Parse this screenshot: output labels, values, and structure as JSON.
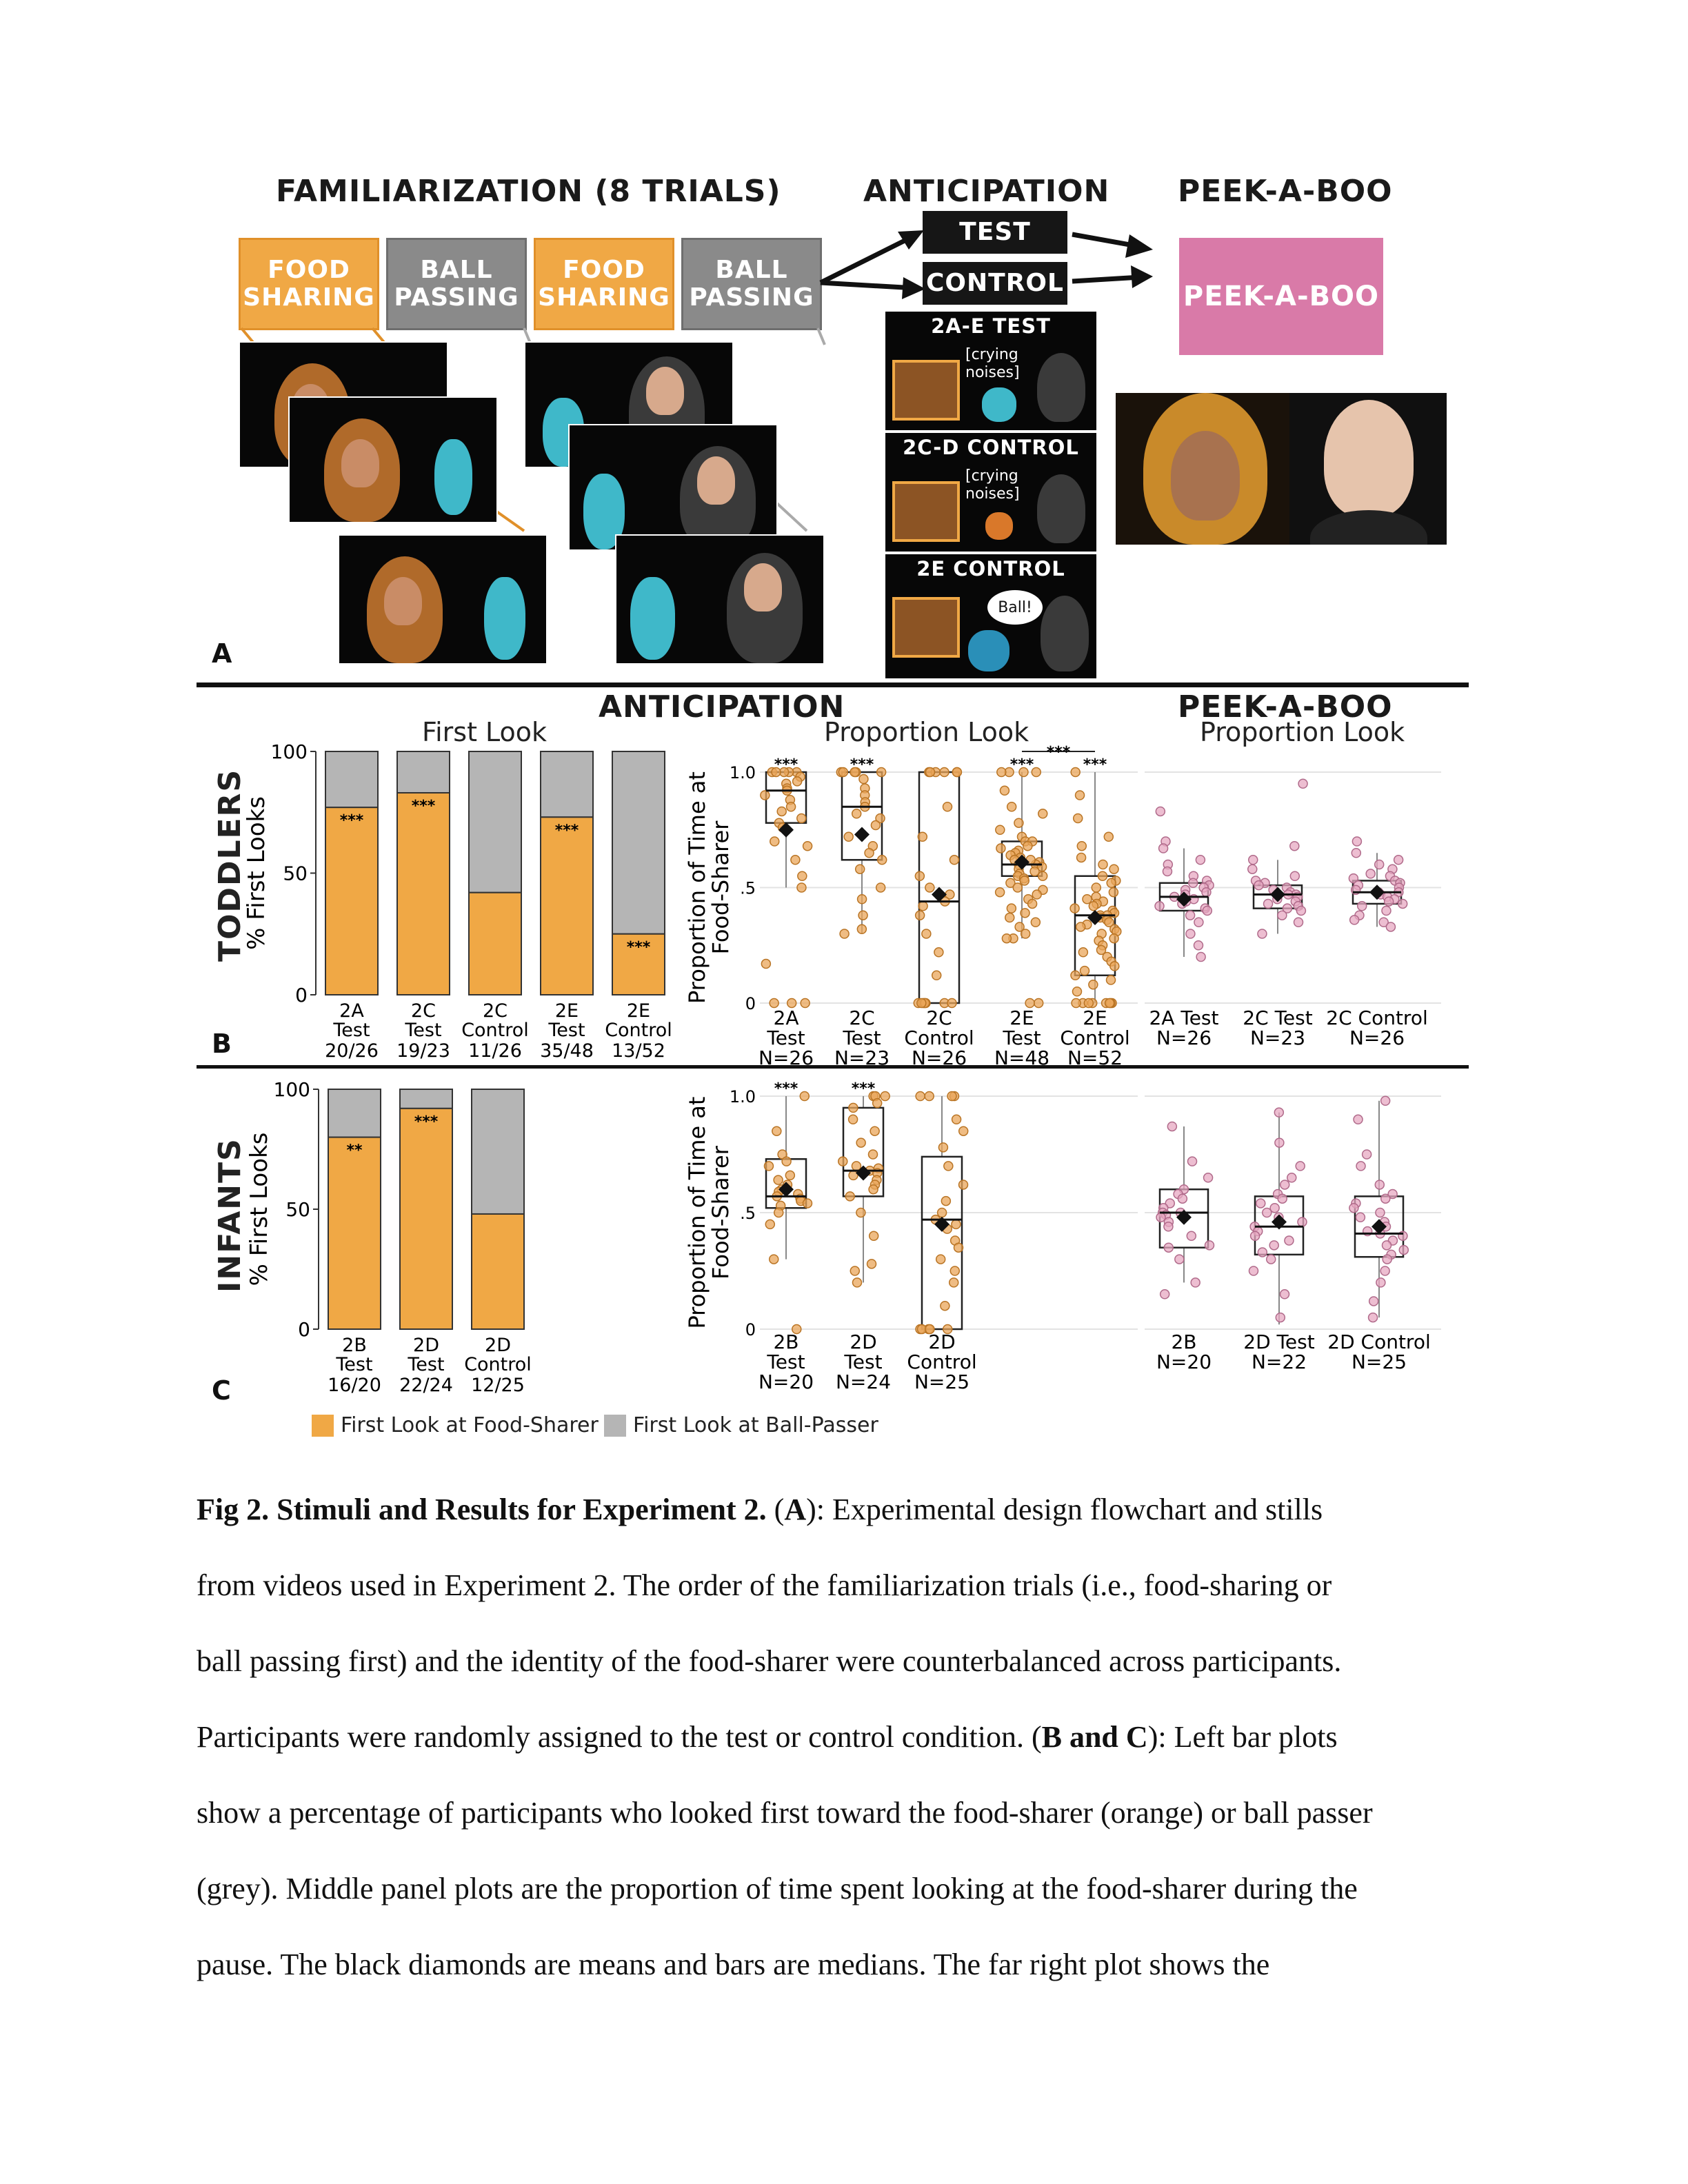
{
  "panelA": {
    "familiarization_title": "FAMILIARIZATION (8 TRIALS)",
    "anticipation_title": "ANTICIPATION",
    "peekaboo_title": "PEEK-A-BOO",
    "familiarization_boxes": [
      {
        "line1": "FOOD",
        "line2": "SHARING"
      },
      {
        "line1": "BALL",
        "line2": "PASSING"
      },
      {
        "line1": "FOOD",
        "line2": "SHARING"
      },
      {
        "line1": "BALL",
        "line2": "PASSING"
      }
    ],
    "test_label": "TEST",
    "control_label": "CONTROL",
    "peekaboo_box": "PEEK-A-BOO",
    "conditions": [
      {
        "label": "2A-E TEST",
        "bubble_line1": "[crying",
        "bubble_line2": "noises]"
      },
      {
        "label": "2C-D CONTROL",
        "bubble_line1": "[crying",
        "bubble_line2": "noises]"
      },
      {
        "label": "2E CONTROL",
        "bubble_line1": "Ball!",
        "bubble_line2": ""
      }
    ],
    "panel_letter": "A"
  },
  "panelB": {
    "row_label": "TODDLERS",
    "panel_letter": "B",
    "anticipation_title": "ANTICIPATION",
    "peekaboo_title": "PEEK-A-BOO",
    "first_look_title": "First Look",
    "proportion_look_title": "Proportion Look",
    "peekaboo_subtitle": "Proportion Look"
  },
  "panelC": {
    "row_label": "INFANTS",
    "panel_letter": "C"
  },
  "legend": {
    "food": "First Look at Food-Sharer",
    "ball": "First Look at Ball-Passer",
    "food_color": "#f0a845",
    "ball_color": "#b5b5b5"
  },
  "chart_data": [
    {
      "id": "toddlers-first-look",
      "type": "bar",
      "title": "First Look",
      "ylabel": "% First Looks",
      "ylim": [
        0,
        100
      ],
      "yticks": [
        0,
        50,
        100
      ],
      "categories": [
        {
          "l1": "2A",
          "l2": "Test",
          "l3": "20/26"
        },
        {
          "l1": "2C",
          "l2": "Test",
          "l3": "19/23"
        },
        {
          "l1": "2C",
          "l2": "Control",
          "l3": "11/26"
        },
        {
          "l1": "2E",
          "l2": "Test",
          "l3": "35/48"
        },
        {
          "l1": "2E",
          "l2": "Control",
          "l3": "13/52"
        }
      ],
      "series": [
        {
          "name": "First Look at Food-Sharer",
          "values": [
            77,
            83,
            42,
            73,
            25
          ]
        },
        {
          "name": "First Look at Ball-Passer",
          "values": [
            23,
            17,
            58,
            27,
            75
          ]
        }
      ],
      "annotations": [
        "***",
        "***",
        "",
        "***",
        "***"
      ]
    },
    {
      "id": "toddlers-proportion-look",
      "type": "scatter",
      "title": "Proportion Look",
      "ylabel_line1": "Proportion of Time at",
      "ylabel_line2": "Food-Sharer",
      "ylim": [
        0,
        1
      ],
      "yticks": [
        "0",
        ".5",
        "1.0"
      ],
      "bracket": "***",
      "groups": [
        {
          "l1": "2A",
          "l2": "Test",
          "l3": "N=26",
          "q1": 0.78,
          "median": 0.92,
          "q3": 1.0,
          "wlo": 0.5,
          "whi": 1.0,
          "mean": 0.75,
          "sig": "***",
          "points": [
            1,
            1,
            1,
            1,
            1,
            0.98,
            0.96,
            0.95,
            0.93,
            0.92,
            0.9,
            0.88,
            0.85,
            0.83,
            0.8,
            0.78,
            0.76,
            0.7,
            0.68,
            0.62,
            0.55,
            0.5,
            0.17,
            0,
            0,
            0
          ]
        },
        {
          "l1": "2C",
          "l2": "Test",
          "l3": "N=23",
          "q1": 0.62,
          "median": 0.85,
          "q3": 1.0,
          "wlo": 0.3,
          "whi": 1.0,
          "mean": 0.73,
          "sig": "***",
          "points": [
            1,
            1,
            1,
            1,
            1,
            0.97,
            0.93,
            0.9,
            0.87,
            0.85,
            0.82,
            0.8,
            0.77,
            0.72,
            0.68,
            0.65,
            0.62,
            0.58,
            0.5,
            0.45,
            0.38,
            0.32,
            0.3
          ]
        },
        {
          "l1": "2C",
          "l2": "Control",
          "l3": "N=26",
          "q1": 0.0,
          "median": 0.44,
          "q3": 1.0,
          "wlo": 0.0,
          "whi": 1.0,
          "mean": 0.47,
          "sig": "",
          "points": [
            1,
            1,
            1,
            1,
            1,
            1,
            0.85,
            0.72,
            0.62,
            0.55,
            0.5,
            0.47,
            0.44,
            0.42,
            0.38,
            0.3,
            0.22,
            0.12,
            0,
            0,
            0,
            0,
            0,
            0,
            0,
            0
          ]
        },
        {
          "l1": "2E",
          "l2": "Test",
          "l3": "N=48",
          "q1": 0.55,
          "median": 0.6,
          "q3": 0.7,
          "wlo": 0.28,
          "whi": 1.0,
          "mean": 0.61,
          "sig": "***",
          "points": [
            1,
            1,
            1,
            1,
            0.92,
            0.85,
            0.82,
            0.78,
            0.75,
            0.72,
            0.7,
            0.7,
            0.68,
            0.67,
            0.66,
            0.65,
            0.64,
            0.63,
            0.62,
            0.61,
            0.6,
            0.6,
            0.59,
            0.58,
            0.57,
            0.56,
            0.55,
            0.55,
            0.54,
            0.53,
            0.52,
            0.5,
            0.49,
            0.48,
            0.47,
            0.45,
            0.43,
            0.41,
            0.39,
            0.37,
            0.35,
            0.33,
            0.3,
            0.28,
            0.28,
            0.0,
            0.0,
            0.62
          ]
        },
        {
          "l1": "2E",
          "l2": "Control",
          "l3": "N=52",
          "q1": 0.12,
          "median": 0.38,
          "q3": 0.55,
          "wlo": 0.0,
          "whi": 1.0,
          "mean": 0.37,
          "sig": "***",
          "points": [
            1,
            0.9,
            0.8,
            0.72,
            0.68,
            0.63,
            0.6,
            0.58,
            0.55,
            0.53,
            0.52,
            0.5,
            0.48,
            0.46,
            0.45,
            0.44,
            0.43,
            0.42,
            0.41,
            0.4,
            0.39,
            0.38,
            0.38,
            0.37,
            0.36,
            0.35,
            0.34,
            0.33,
            0.32,
            0.31,
            0.3,
            0.28,
            0.27,
            0.25,
            0.23,
            0.22,
            0.2,
            0.18,
            0.16,
            0.14,
            0.12,
            0.1,
            0.08,
            0.05,
            0,
            0,
            0,
            0,
            0,
            0,
            0,
            0
          ]
        }
      ]
    },
    {
      "id": "toddlers-peekaboo",
      "type": "scatter",
      "title": "Proportion Look",
      "ylim": [
        0,
        1
      ],
      "groups": [
        {
          "l1": "2A Test",
          "l2": "N=26",
          "q1": 0.4,
          "median": 0.46,
          "q3": 0.52,
          "wlo": 0.2,
          "whi": 0.67,
          "mean": 0.45,
          "points": [
            0.83,
            0.7,
            0.67,
            0.62,
            0.6,
            0.57,
            0.55,
            0.53,
            0.52,
            0.51,
            0.5,
            0.49,
            0.48,
            0.47,
            0.46,
            0.45,
            0.44,
            0.43,
            0.42,
            0.41,
            0.4,
            0.38,
            0.35,
            0.3,
            0.25,
            0.2
          ]
        },
        {
          "l1": "2C Test",
          "l2": "N=23",
          "q1": 0.41,
          "median": 0.47,
          "q3": 0.51,
          "wlo": 0.3,
          "whi": 0.62,
          "mean": 0.47,
          "points": [
            0.95,
            0.68,
            0.62,
            0.58,
            0.55,
            0.53,
            0.52,
            0.51,
            0.5,
            0.49,
            0.48,
            0.47,
            0.47,
            0.46,
            0.45,
            0.44,
            0.43,
            0.42,
            0.41,
            0.4,
            0.38,
            0.35,
            0.3
          ]
        },
        {
          "l1": "2C Control",
          "l2": "N=26",
          "q1": 0.43,
          "median": 0.48,
          "q3": 0.53,
          "wlo": 0.33,
          "whi": 0.65,
          "mean": 0.48,
          "points": [
            0.7,
            0.65,
            0.62,
            0.6,
            0.58,
            0.56,
            0.55,
            0.54,
            0.53,
            0.52,
            0.51,
            0.5,
            0.49,
            0.48,
            0.48,
            0.47,
            0.46,
            0.45,
            0.44,
            0.43,
            0.42,
            0.4,
            0.38,
            0.36,
            0.35,
            0.33
          ]
        }
      ]
    },
    {
      "id": "infants-first-look",
      "type": "bar",
      "ylabel": "% First Looks",
      "ylim": [
        0,
        100
      ],
      "yticks": [
        0,
        50,
        100
      ],
      "categories": [
        {
          "l1": "2B",
          "l2": "Test",
          "l3": "16/20"
        },
        {
          "l1": "2D",
          "l2": "Test",
          "l3": "22/24"
        },
        {
          "l1": "2D",
          "l2": "Control",
          "l3": "12/25"
        }
      ],
      "series": [
        {
          "name": "First Look at Food-Sharer",
          "values": [
            80,
            92,
            48
          ]
        },
        {
          "name": "First Look at Ball-Passer",
          "values": [
            20,
            8,
            52
          ]
        }
      ],
      "annotations": [
        "**",
        "***",
        ""
      ]
    },
    {
      "id": "infants-proportion-look",
      "type": "scatter",
      "ylabel_line1": "Proportion of Time at",
      "ylabel_line2": "Food-Sharer",
      "ylim": [
        0,
        1
      ],
      "yticks": [
        "0",
        ".5",
        "1.0"
      ],
      "groups": [
        {
          "l1": "2B",
          "l2": "Test",
          "l3": "N=20",
          "q1": 0.52,
          "median": 0.57,
          "q3": 0.73,
          "wlo": 0.3,
          "whi": 1.0,
          "mean": 0.6,
          "sig": "***",
          "points": [
            1,
            0.85,
            0.75,
            0.72,
            0.7,
            0.66,
            0.64,
            0.62,
            0.6,
            0.59,
            0.58,
            0.57,
            0.56,
            0.55,
            0.54,
            0.53,
            0.5,
            0.45,
            0.3,
            0
          ]
        },
        {
          "l1": "2D",
          "l2": "Test",
          "l3": "N=24",
          "q1": 0.57,
          "median": 0.68,
          "q3": 0.95,
          "wlo": 0.2,
          "whi": 1.0,
          "mean": 0.67,
          "sig": "***",
          "points": [
            1,
            1,
            1,
            0.97,
            0.95,
            0.9,
            0.85,
            0.8,
            0.75,
            0.72,
            0.7,
            0.69,
            0.68,
            0.67,
            0.66,
            0.64,
            0.62,
            0.6,
            0.57,
            0.5,
            0.4,
            0.28,
            0.25,
            0.2
          ]
        },
        {
          "l1": "2D",
          "l2": "Control",
          "l3": "N=25",
          "q1": 0.0,
          "median": 0.47,
          "q3": 0.74,
          "wlo": 0.0,
          "whi": 1.0,
          "mean": 0.45,
          "sig": "",
          "points": [
            1,
            1,
            1,
            1,
            0.9,
            0.85,
            0.78,
            0.7,
            0.62,
            0.55,
            0.5,
            0.47,
            0.45,
            0.43,
            0.38,
            0.35,
            0.3,
            0.25,
            0.2,
            0.1,
            0,
            0,
            0,
            0,
            0
          ]
        }
      ]
    },
    {
      "id": "infants-peekaboo",
      "type": "scatter",
      "ylim": [
        0,
        1
      ],
      "groups": [
        {
          "l1": "2B",
          "l2": "N=20",
          "q1": 0.35,
          "median": 0.5,
          "q3": 0.6,
          "wlo": 0.2,
          "whi": 0.87,
          "mean": 0.48,
          "points": [
            0.87,
            0.72,
            0.65,
            0.6,
            0.58,
            0.56,
            0.54,
            0.52,
            0.5,
            0.5,
            0.49,
            0.48,
            0.46,
            0.44,
            0.4,
            0.36,
            0.35,
            0.3,
            0.2,
            0.15
          ]
        },
        {
          "l1": "2D Test",
          "l2": "N=22",
          "q1": 0.32,
          "median": 0.44,
          "q3": 0.57,
          "wlo": 0.02,
          "whi": 0.93,
          "mean": 0.46,
          "points": [
            0.93,
            0.8,
            0.7,
            0.65,
            0.62,
            0.58,
            0.56,
            0.54,
            0.52,
            0.5,
            0.48,
            0.46,
            0.44,
            0.42,
            0.4,
            0.38,
            0.36,
            0.33,
            0.3,
            0.25,
            0.15,
            0.05
          ]
        },
        {
          "l1": "2D Control",
          "l2": "N=25",
          "q1": 0.31,
          "median": 0.41,
          "q3": 0.57,
          "wlo": 0.05,
          "whi": 0.98,
          "mean": 0.44,
          "points": [
            0.98,
            0.9,
            0.75,
            0.7,
            0.62,
            0.58,
            0.56,
            0.54,
            0.52,
            0.5,
            0.48,
            0.46,
            0.44,
            0.42,
            0.41,
            0.4,
            0.38,
            0.36,
            0.34,
            0.32,
            0.3,
            0.25,
            0.2,
            0.12,
            0.05
          ]
        }
      ]
    }
  ],
  "caption": {
    "bold_intro": "Fig 2. Stimuli and Results for Experiment 2.",
    "line1_a": " (",
    "line1_bold_a": "A",
    "line1_b": "): Experimental design flowchart and stills",
    "line2": "from videos used in Experiment 2.  The order of the familiarization trials (i.e., food-sharing or",
    "line3": "ball passing first) and the identity of the food-sharer were counterbalanced across participants.",
    "line4_a": "Participants were randomly assigned to the test or control condition. (",
    "line4_bold": "B and C",
    "line4_b": "): Left bar plots",
    "line5": "show a percentage of participants who looked first toward the food-sharer (orange) or ball passer",
    "line6": "(grey). Middle panel plots are the proportion of time spent looking at the food-sharer during the",
    "line7": "pause. The black diamonds are means and bars are medians. The far right plot shows the"
  }
}
